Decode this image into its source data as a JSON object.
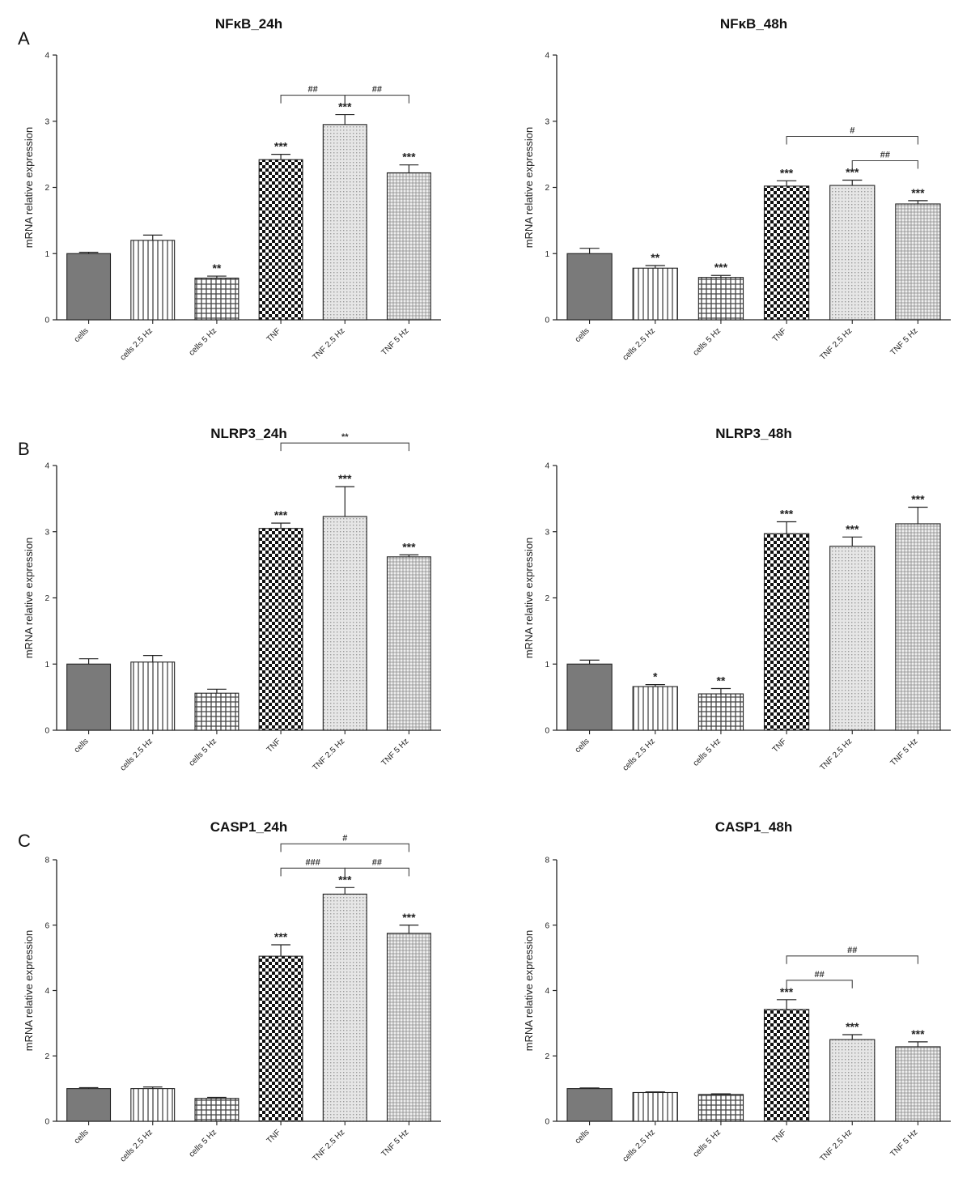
{
  "panel_labels": [
    "A",
    "B",
    "C"
  ],
  "chart_data": [
    {
      "type": "bar",
      "title": "NFκB_24h",
      "ylabel": "mRNA relative expression",
      "ylim": [
        0,
        4
      ],
      "yticks": [
        0,
        1,
        2,
        3,
        4
      ],
      "categories": [
        "cells",
        "cells 2.5 Hz",
        "cells 5 Hz",
        "TNF",
        "TNF 2.5 Hz",
        "TNF 5 Hz"
      ],
      "values": [
        1.0,
        1.2,
        0.63,
        2.42,
        2.95,
        2.22
      ],
      "errors": [
        0.02,
        0.08,
        0.03,
        0.08,
        0.15,
        0.12
      ],
      "stars": [
        "",
        "",
        "**",
        "***",
        "***",
        "***"
      ],
      "brackets": [
        {
          "from": 3,
          "to": 4,
          "label": "##",
          "level": 0
        },
        {
          "from": 4,
          "to": 5,
          "label": "##",
          "level": 0
        }
      ]
    },
    {
      "type": "bar",
      "title": "NFκB_48h",
      "ylabel": "mRNA relative expression",
      "ylim": [
        0,
        4
      ],
      "yticks": [
        0,
        1,
        2,
        3,
        4
      ],
      "categories": [
        "cells",
        "cells 2.5 Hz",
        "cells 5 Hz",
        "TNF",
        "TNF 2.5 Hz",
        "TNF 5 Hz"
      ],
      "values": [
        1.0,
        0.78,
        0.64,
        2.02,
        2.03,
        1.75
      ],
      "errors": [
        0.08,
        0.04,
        0.03,
        0.08,
        0.08,
        0.05
      ],
      "stars": [
        "",
        "**",
        "***",
        "***",
        "***",
        "***"
      ],
      "brackets": [
        {
          "from": 4,
          "to": 5,
          "label": "##",
          "level": 0
        },
        {
          "from": 3,
          "to": 5,
          "label": "#",
          "level": 1
        }
      ]
    },
    {
      "type": "bar",
      "title": "NLRP3_24h",
      "ylabel": "mRNA relative expression",
      "ylim": [
        0,
        4
      ],
      "yticks": [
        0,
        1,
        2,
        3,
        4
      ],
      "categories": [
        "cells",
        "cells 2.5 Hz",
        "cells 5 Hz",
        "TNF",
        "TNF 2.5 Hz",
        "TNF 5 Hz"
      ],
      "values": [
        1.0,
        1.03,
        0.56,
        3.05,
        3.23,
        2.62
      ],
      "errors": [
        0.08,
        0.1,
        0.06,
        0.08,
        0.45,
        0.03
      ],
      "stars": [
        "",
        "",
        "",
        "***",
        "***",
        "***"
      ],
      "brackets": [
        {
          "from": 3,
          "to": 5,
          "label": "**",
          "level": 1
        }
      ]
    },
    {
      "type": "bar",
      "title": "NLRP3_48h",
      "ylabel": "mRNA relative expression",
      "ylim": [
        0,
        4
      ],
      "yticks": [
        0,
        1,
        2,
        3,
        4
      ],
      "categories": [
        "cells",
        "cells 2.5 Hz",
        "cells 5 Hz",
        "TNF",
        "TNF 2.5 Hz",
        "TNF 5 Hz"
      ],
      "values": [
        1.0,
        0.66,
        0.55,
        2.97,
        2.78,
        3.12
      ],
      "errors": [
        0.06,
        0.03,
        0.08,
        0.18,
        0.14,
        0.25
      ],
      "stars": [
        "",
        "*",
        "**",
        "***",
        "***",
        "***"
      ],
      "brackets": []
    },
    {
      "type": "bar",
      "title": "CASP1_24h",
      "ylabel": "mRNA relative expression",
      "ylim": [
        0,
        8
      ],
      "yticks": [
        0,
        2,
        4,
        6,
        8
      ],
      "categories": [
        "cells",
        "cells 2.5 Hz",
        "cells 5 Hz",
        "TNF",
        "TNF 2.5 Hz",
        "TNF 5 Hz"
      ],
      "values": [
        1.0,
        1.0,
        0.7,
        5.05,
        6.95,
        5.75
      ],
      "errors": [
        0.03,
        0.05,
        0.03,
        0.35,
        0.2,
        0.25
      ],
      "stars": [
        "",
        "",
        "",
        "***",
        "***",
        "***"
      ],
      "brackets": [
        {
          "from": 3,
          "to": 4,
          "label": "###",
          "level": 0
        },
        {
          "from": 4,
          "to": 5,
          "label": "##",
          "level": 0
        },
        {
          "from": 3,
          "to": 5,
          "label": "#",
          "level": 1
        }
      ]
    },
    {
      "type": "bar",
      "title": "CASP1_48h",
      "ylabel": "mRNA relative expression",
      "ylim": [
        0,
        8
      ],
      "yticks": [
        0,
        2,
        4,
        6,
        8
      ],
      "categories": [
        "cells",
        "cells 2.5 Hz",
        "cells 5 Hz",
        "TNF",
        "TNF 2.5 Hz",
        "TNF 5 Hz"
      ],
      "values": [
        1.0,
        0.88,
        0.82,
        3.42,
        2.5,
        2.28
      ],
      "errors": [
        0.02,
        0.02,
        0.02,
        0.3,
        0.15,
        0.15
      ],
      "stars": [
        "",
        "",
        "",
        "***",
        "***",
        "***"
      ],
      "brackets": [
        {
          "from": 3,
          "to": 4,
          "label": "##",
          "level": 0
        },
        {
          "from": 3,
          "to": 5,
          "label": "##",
          "level": 1
        }
      ]
    }
  ]
}
